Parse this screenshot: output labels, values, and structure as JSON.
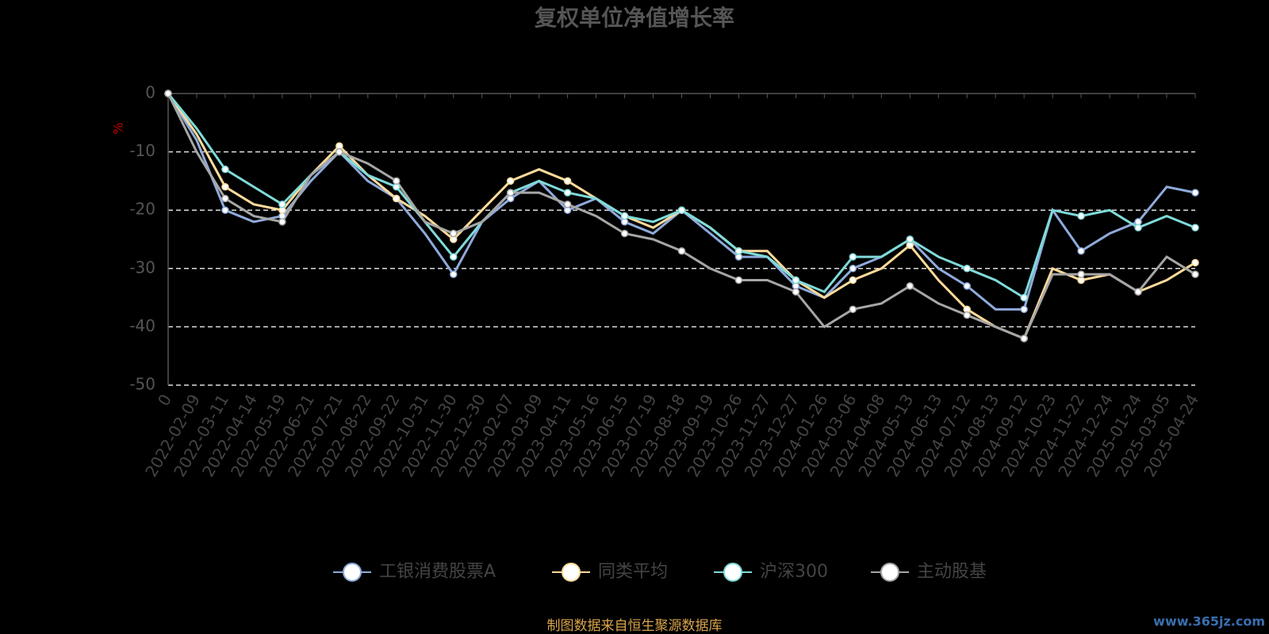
{
  "chart_data": {
    "type": "line",
    "title": "复权单位净值增长率",
    "y_label": "%",
    "source": "制图数据来自恒生聚源数据库",
    "watermark": "www.365jz.com",
    "categories": [
      "0",
      "2022-02-09",
      "2022-03-11",
      "2022-04-14",
      "2022-05-19",
      "2022-06-21",
      "2022-07-21",
      "2022-08-22",
      "2022-09-22",
      "2022-10-31",
      "2022-11-30",
      "2022-12-30",
      "2023-02-07",
      "2023-03-09",
      "2023-04-11",
      "2023-05-16",
      "2023-06-15",
      "2023-07-19",
      "2023-08-18",
      "2023-09-19",
      "2023-10-26",
      "2023-11-27",
      "2023-12-27",
      "2024-01-26",
      "2024-03-06",
      "2024-04-08",
      "2024-05-13",
      "2024-06-13",
      "2024-07-12",
      "2024-08-13",
      "2024-09-12",
      "2024-10-23",
      "2024-11-22",
      "2024-12-24",
      "2025-01-24",
      "2025-03-05",
      "2025-04-24"
    ],
    "series": [
      {
        "name": "工银消费股票A",
        "color": "#8faadc",
        "values": [
          0,
          -8,
          -20,
          -22,
          -21,
          -15,
          -10,
          -15,
          -18,
          -24,
          -31,
          -22,
          -18,
          -15,
          -20,
          -18,
          -22,
          -24,
          -20,
          -24,
          -28,
          -28,
          -33,
          -35,
          -30,
          -28,
          -25,
          -30,
          -33,
          -37,
          -37,
          -20,
          -27,
          -24,
          -22,
          -16,
          -17
        ]
      },
      {
        "name": "同类平均",
        "color": "#ffdb9a",
        "values": [
          0,
          -7,
          -16,
          -19,
          -20,
          -14,
          -9,
          -14,
          -18,
          -21,
          -25,
          -20,
          -15,
          -13,
          -15,
          -18,
          -21,
          -23,
          -20,
          -23,
          -27,
          -27,
          -32,
          -35,
          -32,
          -30,
          -26,
          -32,
          -37,
          -40,
          -42,
          -30,
          -32,
          -31,
          -34,
          -32,
          -29
        ]
      },
      {
        "name": "沪深300",
        "color": "#7fdbda",
        "values": [
          0,
          -6,
          -13,
          -16,
          -19,
          -14,
          -10,
          -14,
          -16,
          -22,
          -28,
          -22,
          -17,
          -15,
          -17,
          -18,
          -21,
          -22,
          -20,
          -23,
          -27,
          -28,
          -32,
          -34,
          -28,
          -28,
          -25,
          -28,
          -30,
          -32,
          -35,
          -20,
          -21,
          -20,
          -23,
          -21,
          -23
        ]
      },
      {
        "name": "主动股基",
        "color": "#a6a6a6",
        "values": [
          0,
          -10,
          -18,
          -21,
          -22,
          -14,
          -10,
          -12,
          -15,
          -22,
          -24,
          -22,
          -17,
          -17,
          -19,
          -21,
          -24,
          -25,
          -27,
          -30,
          -32,
          -32,
          -34,
          -40,
          -37,
          -36,
          -33,
          -36,
          -38,
          -40,
          -42,
          -31,
          -31,
          -31,
          -34,
          -28,
          -31
        ]
      }
    ],
    "ylim": [
      -50,
      0
    ],
    "yticks": [
      0,
      -10,
      -20,
      -30,
      -40,
      -50
    ],
    "grid": true
  }
}
